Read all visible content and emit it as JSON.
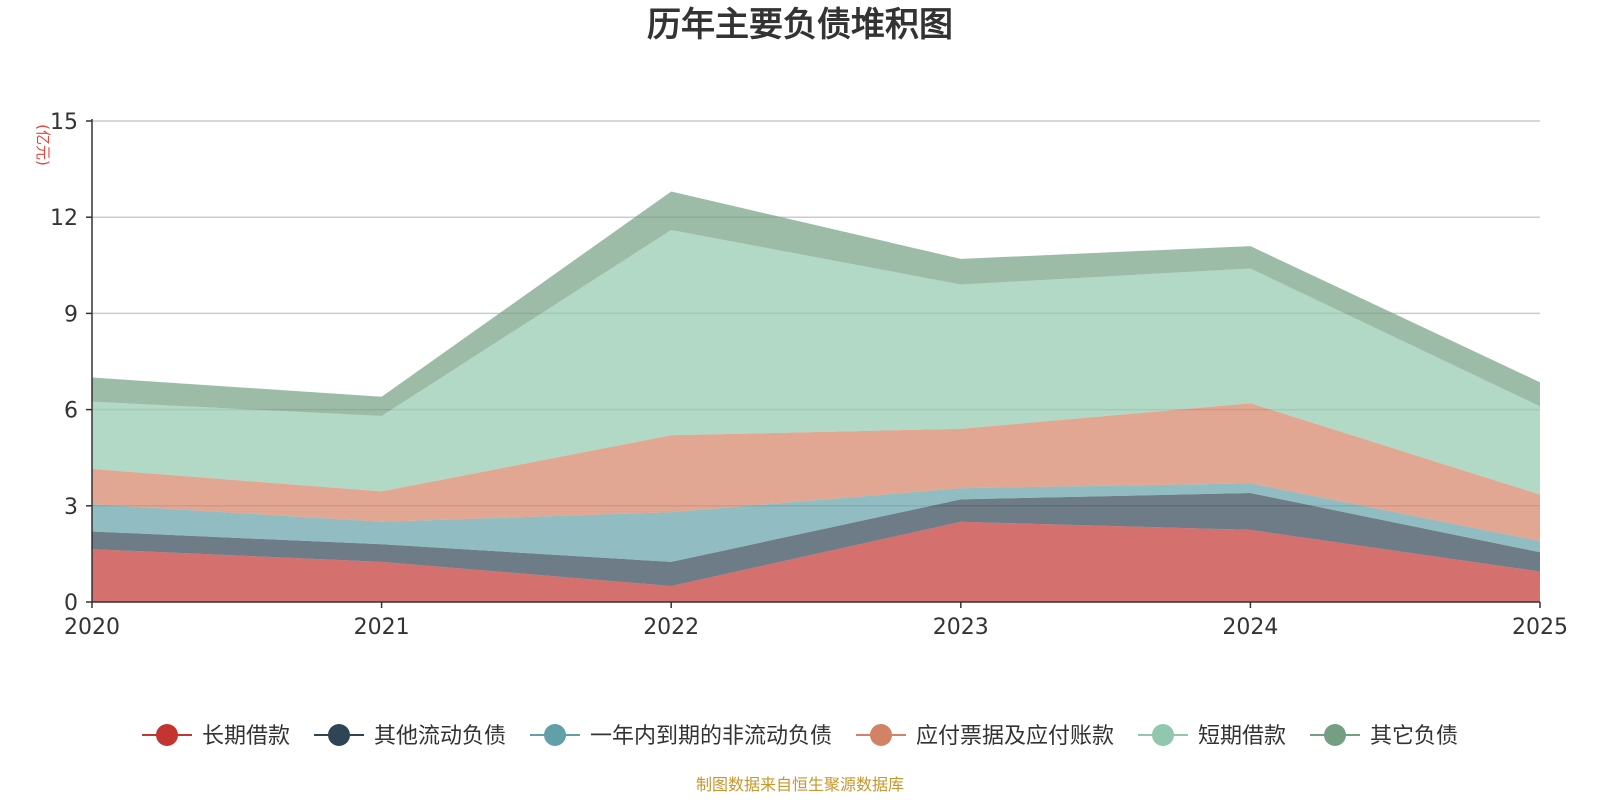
{
  "chart_data": {
    "type": "area",
    "stacked": true,
    "title": "历年主要负债堆积图",
    "ylabel": "(亿元)",
    "xlabel": "",
    "x": [
      "2020",
      "2021",
      "2022",
      "2023",
      "2024",
      "2025"
    ],
    "ylim": [
      0,
      15
    ],
    "yticks": [
      0,
      3,
      6,
      9,
      12,
      15
    ],
    "grid": true,
    "legend_position": "bottom",
    "series": [
      {
        "name": "长期借款",
        "color": "#c23531",
        "values": [
          1.65,
          1.25,
          0.5,
          2.5,
          2.25,
          0.95
        ]
      },
      {
        "name": "其他流动负债",
        "color": "#2f4554",
        "values": [
          0.55,
          0.55,
          0.75,
          0.7,
          1.15,
          0.6
        ]
      },
      {
        "name": "一年内到期的非流动负债",
        "color": "#61a0a8",
        "values": [
          0.85,
          0.7,
          1.55,
          0.35,
          0.3,
          0.35
        ]
      },
      {
        "name": "应付票据及应付账款",
        "color": "#d48265",
        "values": [
          1.1,
          0.95,
          2.4,
          1.85,
          2.5,
          1.45
        ]
      },
      {
        "name": "短期借款",
        "color": "#91c7ae",
        "values": [
          2.1,
          2.35,
          6.4,
          4.5,
          4.2,
          2.75
        ]
      },
      {
        "name": "其它负债",
        "color": "#749f83",
        "values": [
          0.75,
          0.6,
          1.2,
          0.8,
          0.7,
          0.75
        ]
      }
    ],
    "source": "制图数据来自恒生聚源数据库"
  }
}
